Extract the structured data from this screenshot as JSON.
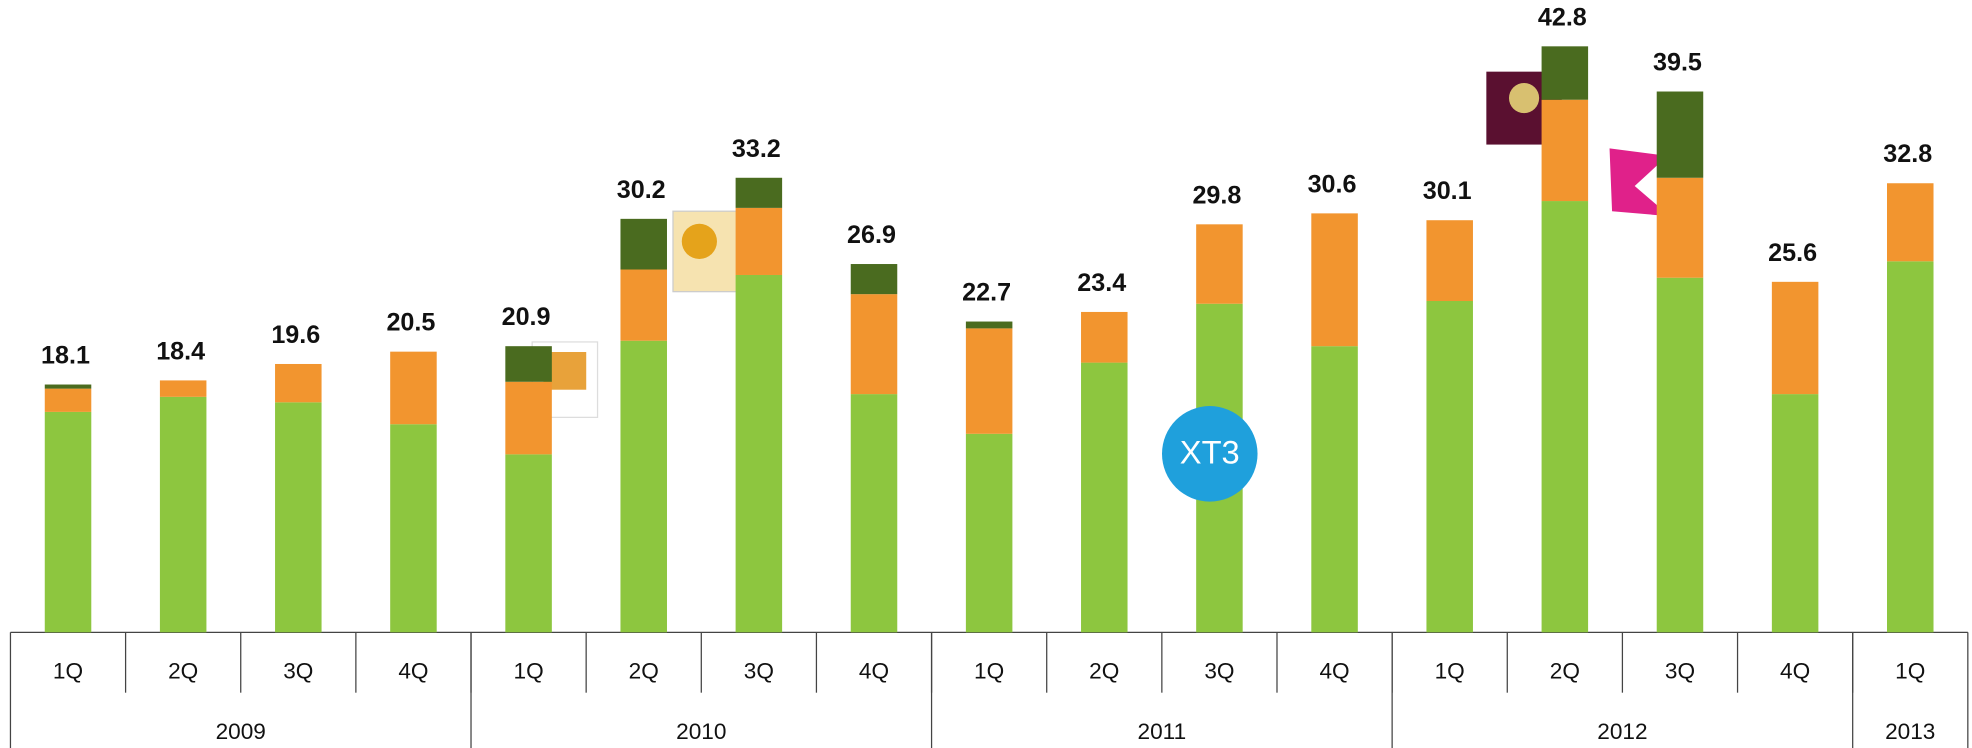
{
  "chart_data": {
    "type": "stacked_bar",
    "categories": [
      "1Q",
      "2Q",
      "3Q",
      "4Q",
      "1Q",
      "2Q",
      "3Q",
      "4Q",
      "1Q",
      "2Q",
      "3Q",
      "4Q",
      "1Q",
      "2Q",
      "3Q",
      "4Q",
      "1Q"
    ],
    "groups": [
      {
        "name": "2009",
        "count": 4
      },
      {
        "name": "2010",
        "count": 4
      },
      {
        "name": "2011",
        "count": 4
      },
      {
        "name": "2012",
        "count": 4
      },
      {
        "name": "2013",
        "count": 1
      }
    ],
    "series": [
      {
        "color": "#8dc63f",
        "values": [
          16.1,
          17.2,
          16.8,
          15.2,
          13.0,
          21.3,
          26.1,
          17.4,
          14.5,
          19.7,
          24.0,
          20.9,
          24.2,
          31.5,
          25.9,
          17.4,
          27.1
        ]
      },
      {
        "color": "#f2952f",
        "values": [
          1.7,
          1.2,
          2.8,
          5.3,
          5.3,
          5.2,
          4.9,
          7.3,
          7.7,
          3.7,
          5.8,
          9.7,
          5.9,
          7.4,
          7.3,
          8.2,
          5.7
        ]
      },
      {
        "color": "#4a6b1f",
        "values": [
          0.3,
          null,
          null,
          null,
          2.6,
          3.7,
          2.2,
          2.2,
          0.5,
          null,
          null,
          null,
          null,
          3.9,
          6.3,
          null,
          null
        ]
      }
    ],
    "totals": [
      18.1,
      18.4,
      19.6,
      20.5,
      20.9,
      30.2,
      33.2,
      26.9,
      22.7,
      23.4,
      29.8,
      30.6,
      30.1,
      42.8,
      39.5,
      25.6,
      32.8
    ],
    "ylim": [
      0,
      46
    ],
    "annotations": [
      "XT3"
    ]
  }
}
